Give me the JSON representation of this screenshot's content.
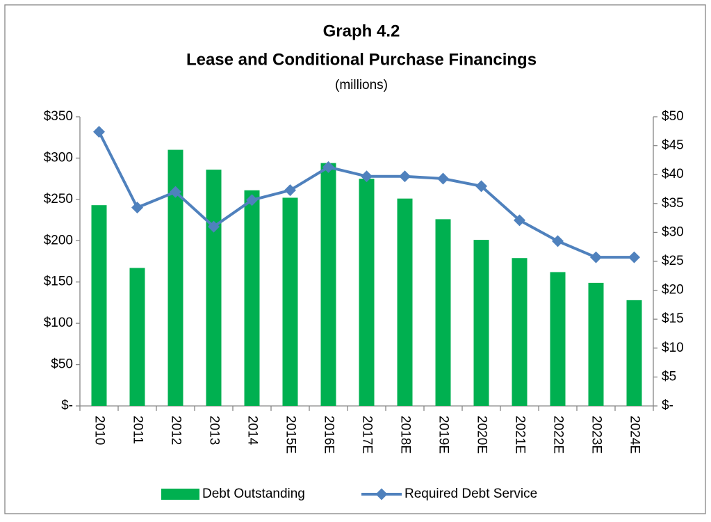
{
  "chart_data": {
    "type": "bar",
    "title": "Graph 4.2",
    "subtitle": "Lease and Conditional Purchase Financings",
    "unit_note": "(millions)",
    "categories": [
      "2010",
      "2011",
      "2012",
      "2013",
      "2014",
      "2015E",
      "2016E",
      "2017E",
      "2018E",
      "2019E",
      "2020E",
      "2021E",
      "2022E",
      "2023E",
      "2024E"
    ],
    "series": [
      {
        "name": "Debt Outstanding",
        "type": "bar",
        "color": "#00b050",
        "axis": "y",
        "values": [
          243,
          167,
          310,
          286,
          261,
          252,
          294,
          275,
          251,
          226,
          201,
          179,
          162,
          149,
          128
        ]
      },
      {
        "name": "Required Debt Service",
        "type": "line",
        "color": "#4f81bd",
        "axis": "y2",
        "values": [
          47.4,
          34.3,
          37.0,
          31.0,
          35.6,
          37.3,
          41.3,
          39.7,
          39.7,
          39.3,
          38.0,
          32.1,
          28.5,
          25.7,
          25.7
        ]
      }
    ],
    "ylim": [
      0,
      350
    ],
    "yticks": [
      {
        "value": 0,
        "label": "$-"
      },
      {
        "value": 50,
        "label": "$50"
      },
      {
        "value": 100,
        "label": "$100"
      },
      {
        "value": 150,
        "label": "$150"
      },
      {
        "value": 200,
        "label": "$200"
      },
      {
        "value": 250,
        "label": "$250"
      },
      {
        "value": 300,
        "label": "$300"
      },
      {
        "value": 350,
        "label": "$350"
      }
    ],
    "y2lim": [
      0,
      50
    ],
    "y2ticks": [
      {
        "value": 0,
        "label": "$-"
      },
      {
        "value": 5,
        "label": "$5"
      },
      {
        "value": 10,
        "label": "$10"
      },
      {
        "value": 15,
        "label": "$15"
      },
      {
        "value": 20,
        "label": "$20"
      },
      {
        "value": 25,
        "label": "$25"
      },
      {
        "value": 30,
        "label": "$30"
      },
      {
        "value": 35,
        "label": "$35"
      },
      {
        "value": 40,
        "label": "$40"
      },
      {
        "value": 45,
        "label": "$45"
      },
      {
        "value": 50,
        "label": "$50"
      }
    ],
    "legend": "bottom",
    "grid": false
  }
}
